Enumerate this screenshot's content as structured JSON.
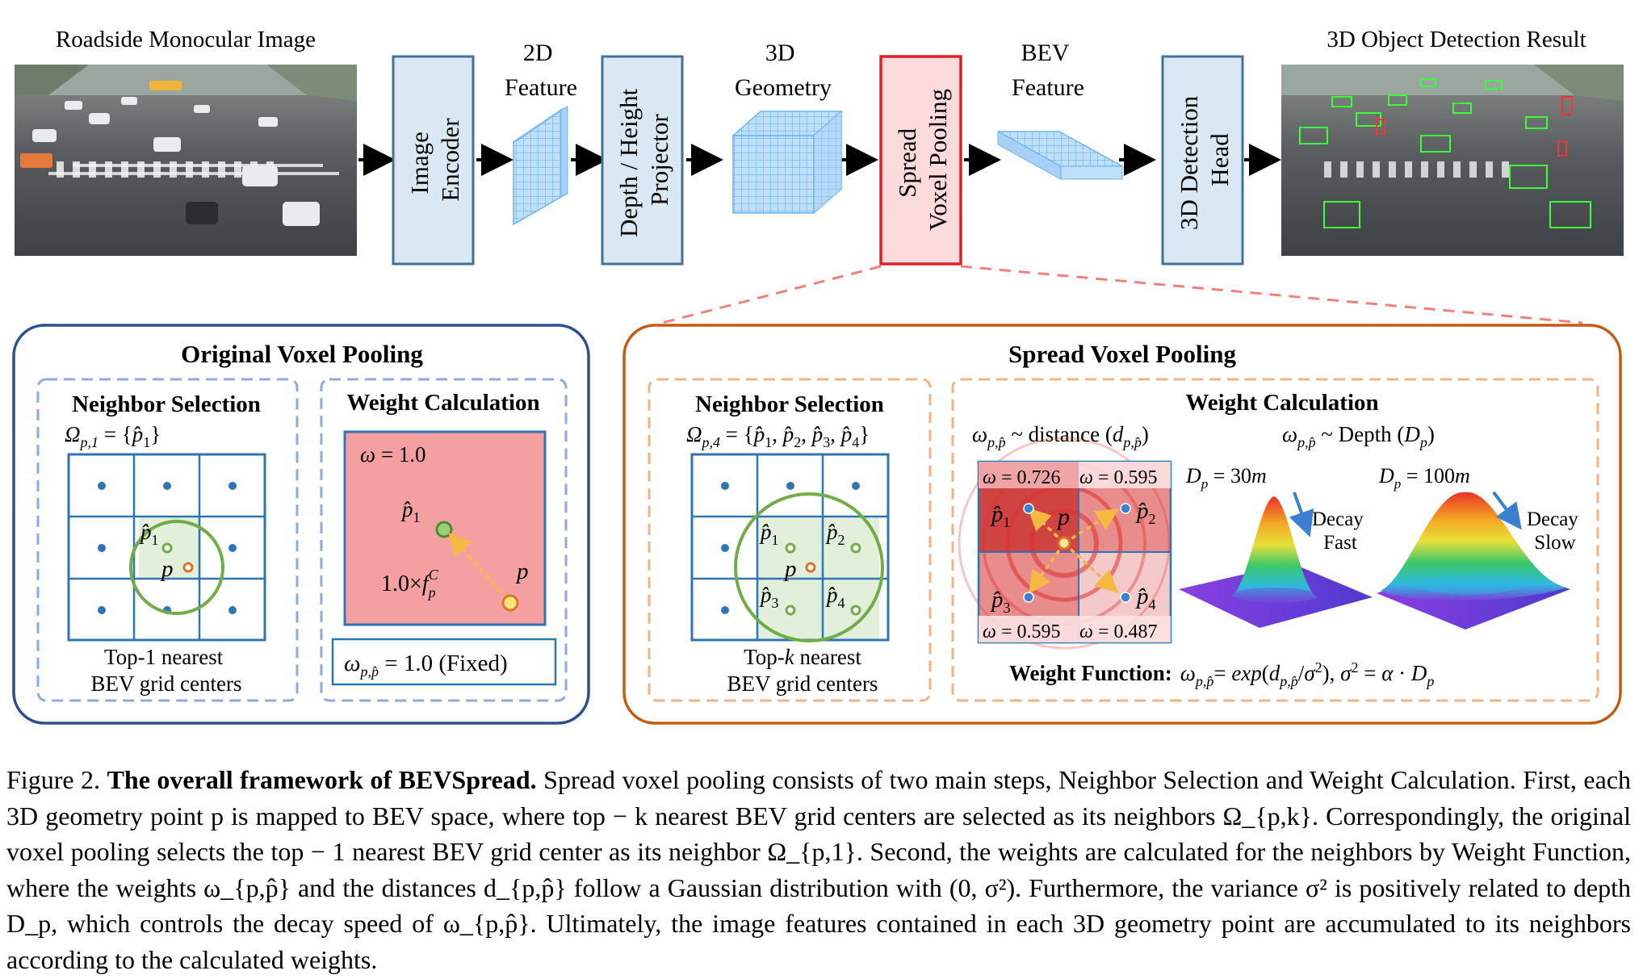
{
  "pipeline": {
    "input_title": "Roadside Monocular Image",
    "encoder_label": [
      "Image",
      "Encoder"
    ],
    "feature2d_label": [
      "2D",
      "Feature"
    ],
    "projector_label": [
      "Depth / Height",
      "Projector"
    ],
    "geometry3d_label": [
      "3D",
      "Geometry"
    ],
    "spread_label": [
      "Spread",
      "Voxel Pooling"
    ],
    "bev_label": [
      "BEV",
      "Feature"
    ],
    "head_label": [
      "3D Detection",
      "Head"
    ],
    "output_title": "3D Object Detection Result"
  },
  "original": {
    "title": "Original Voxel Pooling",
    "neighbor_title": "Neighbor Selection",
    "neighbor_formula": "Ω_{p,1} = {p̂_1}",
    "p_hat_1": "p̂1",
    "p": "p",
    "caption_line1": "Top-1 nearest",
    "caption_line2": "BEV grid centers",
    "weight_title": "Weight Calculation",
    "omega": "ω = 1.0",
    "feature_expr": "1.0×f",
    "feature_sup": "C",
    "feature_sub": "p",
    "fixed": "ω",
    "fixed_sub": "p,p̂",
    "fixed_rest": " = 1.0 (Fixed)"
  },
  "spread": {
    "title": "Spread Voxel Pooling",
    "neighbor_title": "Neighbor Selection",
    "neighbor_formula_lhs": "Ω",
    "neighbor_formula_sub": "p,4",
    "neighbor_formula_rhs": " = {p̂1, p̂2, p̂3, p̂4}",
    "neighbors": [
      "p̂1",
      "p̂2",
      "p̂3",
      "p̂4"
    ],
    "p": "p",
    "caption_line1_a": "Top-",
    "caption_line1_k": "k",
    "caption_line1_b": " nearest",
    "caption_line2": "BEV grid centers",
    "weight_title": "Weight Calculation",
    "dist_relation": "ω_{p,p̂} ~ distance (d_{p,p̂})",
    "depth_relation": "ω_{p,p̂} ~ Depth (D_p)",
    "weights": {
      "tl": "ω = 0.726",
      "tr": "ω = 0.595",
      "bl": "ω = 0.595",
      "br": "ω = 0.487"
    },
    "depth_near": "D",
    "depth_near_val": " = 30m",
    "depth_far": "D",
    "depth_far_val": " = 100m",
    "decay_fast": [
      "Decay",
      "Fast"
    ],
    "decay_slow": [
      "Decay",
      "Slow"
    ],
    "weight_fn_label": "Weight Function:",
    "weight_fn": "ω_{p,p̂}= exp(d_{p,p̂}/σ²), σ² = α · D_p"
  },
  "caption": {
    "label": "Figure 2.",
    "title": "The overall framework of BEVSpread.",
    "body": "Spread voxel pooling consists of two main steps, Neighbor Selection and Weight Calculation. First, each 3D geometry point p is mapped to BEV space, where top − k nearest BEV grid centers are selected as its neighbors Ω_{p,k}. Correspondingly, the original voxel pooling selects the top − 1 nearest BEV grid center as its neighbor Ω_{p,1}. Second, the weights are calculated for the neighbors by Weight Function, where the weights ω_{p,p̂} and the distances d_{p,p̂} follow a Gaussian distribution with (0, σ²). Furthermore, the variance σ² is positively related to depth D_p, which controls the decay speed of ω_{p,p̂}. Ultimately, the image features contained in each 3D geometry point are accumulated to its neighbors according to the calculated weights."
  },
  "colors": {
    "module_fill": "#dae8f4",
    "module_stroke": "#41719c",
    "spread_fill": "#fadada",
    "spread_stroke": "#d9232a",
    "orig_border": "#2e4f8f",
    "spread_border": "#c55a11",
    "dash_blue": "#8faadc",
    "dash_orange": "#f4b183",
    "grid": "#2e75b6",
    "green": "#70ad47",
    "red_fill": "#f4a0a0"
  }
}
